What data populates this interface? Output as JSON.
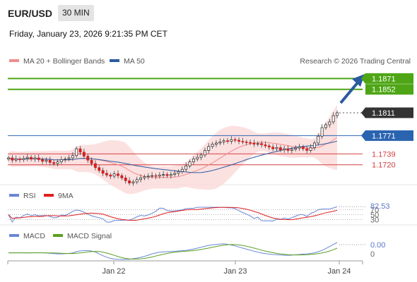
{
  "header": {
    "symbol": "EUR/USD",
    "timeframe": "30 MIN",
    "datetime": "Friday, January 23, 2026 9:21:35 PM CET"
  },
  "legend": {
    "main": [
      {
        "label": "MA 20 + Bollinger Bands",
        "color": "#f28b8b"
      },
      {
        "label": "MA 50",
        "color": "#2a5aa0"
      }
    ],
    "rsi": [
      {
        "label": "RSI",
        "color": "#6a86d6"
      },
      {
        "label": "9MA",
        "color": "#e02020"
      }
    ],
    "macd": [
      {
        "label": "MACD",
        "color": "#6a86d6"
      },
      {
        "label": "MACD Signal",
        "color": "#5aa020"
      }
    ]
  },
  "copyright": "Research © 2026 Trading Central",
  "colors": {
    "resistance": "#4ea616",
    "support": "#d44040",
    "pivot": "#2a64b0",
    "current": "#333333",
    "bull": "#2e8b2e",
    "bear": "#d22020"
  },
  "chart_data": [
    {
      "type": "candlestick",
      "ylim": [
        1.169,
        1.1885
      ],
      "x_ticks": [
        "Jan 22",
        "Jan 23",
        "Jan 24"
      ],
      "levels": [
        {
          "value": 1.1871,
          "label": "1.1871",
          "kind": "resistance"
        },
        {
          "value": 1.1852,
          "label": "1.1852",
          "kind": "resistance"
        },
        {
          "value": 1.1811,
          "label": "1.1811",
          "kind": "current"
        },
        {
          "value": 1.1771,
          "label": "1.1771",
          "kind": "pivot"
        },
        {
          "value": 1.1739,
          "label": "1.1739",
          "kind": "support"
        },
        {
          "value": 1.172,
          "label": "1.1720",
          "kind": "support"
        }
      ],
      "close": [
        1.1732,
        1.1728,
        1.173,
        1.1729,
        1.1731,
        1.1733,
        1.173,
        1.1732,
        1.1729,
        1.1726,
        1.1728,
        1.1724,
        1.1722,
        1.1725,
        1.1729,
        1.173,
        1.1732,
        1.1736,
        1.1748,
        1.1742,
        1.1735,
        1.1728,
        1.1722,
        1.1715,
        1.171,
        1.1705,
        1.1702,
        1.17,
        1.1704,
        1.1701,
        1.1697,
        1.1692,
        1.1688,
        1.169,
        1.1694,
        1.1697,
        1.1699,
        1.17,
        1.1701,
        1.17,
        1.1702,
        1.1703,
        1.1701,
        1.1703,
        1.1705,
        1.1708,
        1.1712,
        1.1718,
        1.1725,
        1.173,
        1.1733,
        1.1737,
        1.1745,
        1.1752,
        1.1756,
        1.1758,
        1.176,
        1.1762,
        1.1761,
        1.1764,
        1.1763,
        1.1761,
        1.176,
        1.1759,
        1.1758,
        1.1756,
        1.1757,
        1.1755,
        1.1753,
        1.1751,
        1.1748,
        1.175,
        1.1746,
        1.1748,
        1.1745,
        1.1747,
        1.1749,
        1.1751,
        1.1748,
        1.1745,
        1.175,
        1.1758,
        1.177,
        1.1785,
        1.179,
        1.1795,
        1.1806,
        1.1811
      ],
      "rsi": {
        "latest": 82.53,
        "levels": [
          70,
          50,
          30
        ],
        "ylim": [
          20,
          100
        ]
      },
      "macd": {
        "latest": 0.0,
        "zero": 0
      }
    }
  ]
}
